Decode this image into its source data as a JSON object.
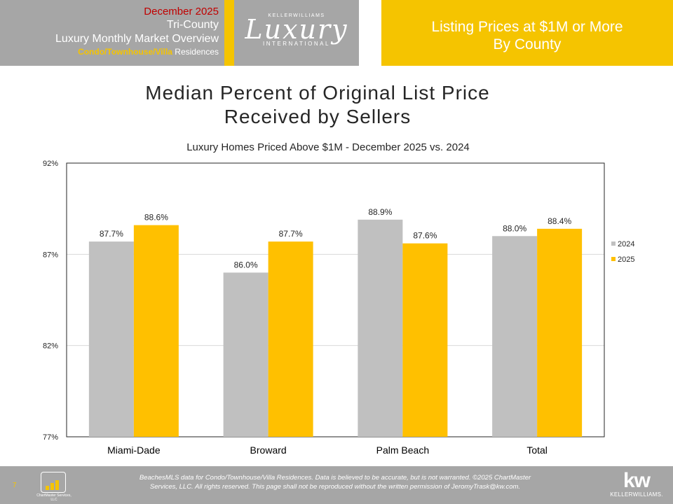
{
  "header": {
    "date": "December 2025",
    "region": "Tri-County",
    "report_title": "Luxury Monthly Market Overview",
    "property_type": "Condo/Townhouse/Villa",
    "property_suffix": "Residences",
    "logo_top": "KELLERWILLIAMS",
    "logo_main": "Luxury",
    "logo_sub": "INTERNATIONAL",
    "section_line1": "Listing Prices at $1M or More",
    "section_line2": "By County"
  },
  "colors": {
    "series_2024": "#c0c0c0",
    "series_2025": "#ffc000",
    "brand_gold": "#f5c400",
    "header_gray": "#a6a6a6"
  },
  "chart_data": {
    "type": "bar",
    "title_line1": "Median Percent of Original List Price",
    "title_line2": "Received by Sellers",
    "subtitle": "Luxury Homes Priced Above $1M - December 2025 vs. 2024",
    "categories": [
      "Miami-Dade",
      "Broward",
      "Palm Beach",
      "Total"
    ],
    "series": [
      {
        "name": "2024",
        "values": [
          87.7,
          86.0,
          88.9,
          88.0
        ],
        "labels": [
          "87.7%",
          "86.0%",
          "88.9%",
          "88.0%"
        ]
      },
      {
        "name": "2025",
        "values": [
          88.6,
          87.7,
          87.6,
          88.4
        ],
        "labels": [
          "88.6%",
          "87.7%",
          "87.6%",
          "88.4%"
        ]
      }
    ],
    "ylim": [
      77,
      92
    ],
    "yticks": [
      92,
      87,
      82,
      77
    ],
    "ytick_labels": [
      "92%",
      "87%",
      "82%",
      "77%"
    ],
    "grid": true,
    "legend_position": "right"
  },
  "footer": {
    "page_number": "7",
    "chartmaster_logo_text": "ChartMaster Services, LLC",
    "disclaimer_line1": "BeachesMLS data for Condo/Townhouse/Villa Residences. Data is believed to be accurate, but is not warranted. ©2025 ChartMaster",
    "disclaimer_line2": "Services, LLC. All rights reserved. This page shall not be reproduced without the written permission of JeromyTrask@kw.com.",
    "kw_mark": "kw",
    "kw_name": "KELLERWILLIAMS."
  }
}
